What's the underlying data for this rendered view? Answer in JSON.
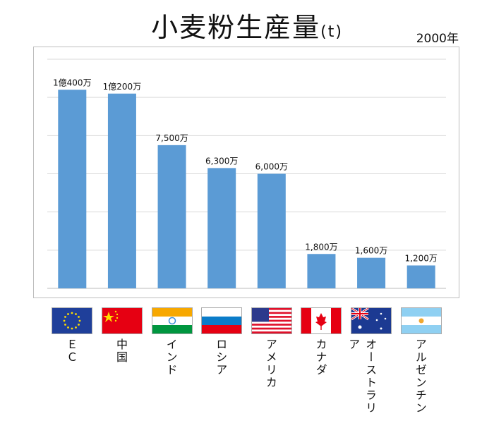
{
  "chart_data": {
    "type": "bar",
    "title": "小麦粉生産量",
    "unit": "(t)",
    "note": "2000年",
    "categories": [
      "ＥＣ",
      "中国",
      "インド",
      "ロシア",
      "アメリカ",
      "カナダ",
      "オーストラリア",
      "アルゼンチン"
    ],
    "values": [
      10400,
      10200,
      7500,
      6300,
      6000,
      1800,
      1600,
      1200
    ],
    "value_unit": "万t",
    "data_labels": [
      "1億400万",
      "1億200万",
      "7,500万",
      "6,300万",
      "6,000万",
      "1,800万",
      "1,600万",
      "1,200万"
    ],
    "ylim": [
      0,
      12000
    ],
    "ytick_step": 2000,
    "grid": true,
    "bar_color": "#5b9bd5",
    "flags": [
      "eu-flag",
      "china-flag",
      "india-flag",
      "russia-flag",
      "usa-flag",
      "canada-flag",
      "australia-flag",
      "argentina-flag"
    ]
  }
}
